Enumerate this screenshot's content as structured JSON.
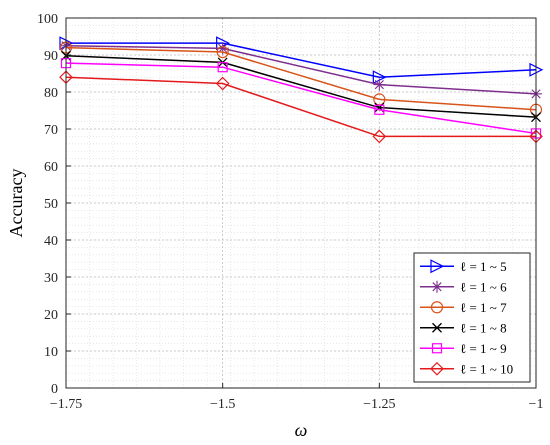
{
  "chart_data": {
    "type": "line",
    "xlabel": "ω",
    "ylabel": "Accuracy",
    "x": [
      -1.75,
      -1.5,
      -1.25,
      -1
    ],
    "xlim": [
      -1.75,
      -1
    ],
    "ylim": [
      0,
      100
    ],
    "xticks": [
      -1.75,
      -1.5,
      -1.25,
      -1
    ],
    "xtick_labels": [
      "−1.75",
      "−1.5",
      "−1.25",
      "−1"
    ],
    "yticks": [
      0,
      10,
      20,
      30,
      40,
      50,
      60,
      70,
      80,
      90,
      100
    ],
    "ytick_labels": [
      "0",
      "10",
      "20",
      "30",
      "40",
      "50",
      "60",
      "70",
      "80",
      "90",
      "100"
    ],
    "grid": true,
    "minor_grid": true,
    "legend_position": "bottom-right",
    "series": [
      {
        "name": "ℓ = 1 ~ 5",
        "color": "#0000ff",
        "marker": "triangle-right",
        "values": [
          93.2,
          93.2,
          84.0,
          86.0
        ]
      },
      {
        "name": "ℓ = 1 ~ 6",
        "color": "#7e2f8e",
        "marker": "asterisk",
        "values": [
          92.5,
          91.8,
          82.0,
          79.5
        ]
      },
      {
        "name": "ℓ = 1 ~ 7",
        "color": "#d95319",
        "marker": "circle",
        "values": [
          92.0,
          90.8,
          78.0,
          75.2
        ]
      },
      {
        "name": "ℓ = 1 ~ 8",
        "color": "#000000",
        "marker": "x",
        "values": [
          89.8,
          88.0,
          75.8,
          73.2
        ]
      },
      {
        "name": "ℓ = 1 ~ 9",
        "color": "#ff00ff",
        "marker": "square",
        "values": [
          87.8,
          86.7,
          75.2,
          68.8
        ]
      },
      {
        "name": "ℓ = 1 ~ 10",
        "color": "#e31a1c",
        "marker": "diamond",
        "values": [
          84.0,
          82.3,
          68.0,
          68.0
        ]
      }
    ]
  }
}
